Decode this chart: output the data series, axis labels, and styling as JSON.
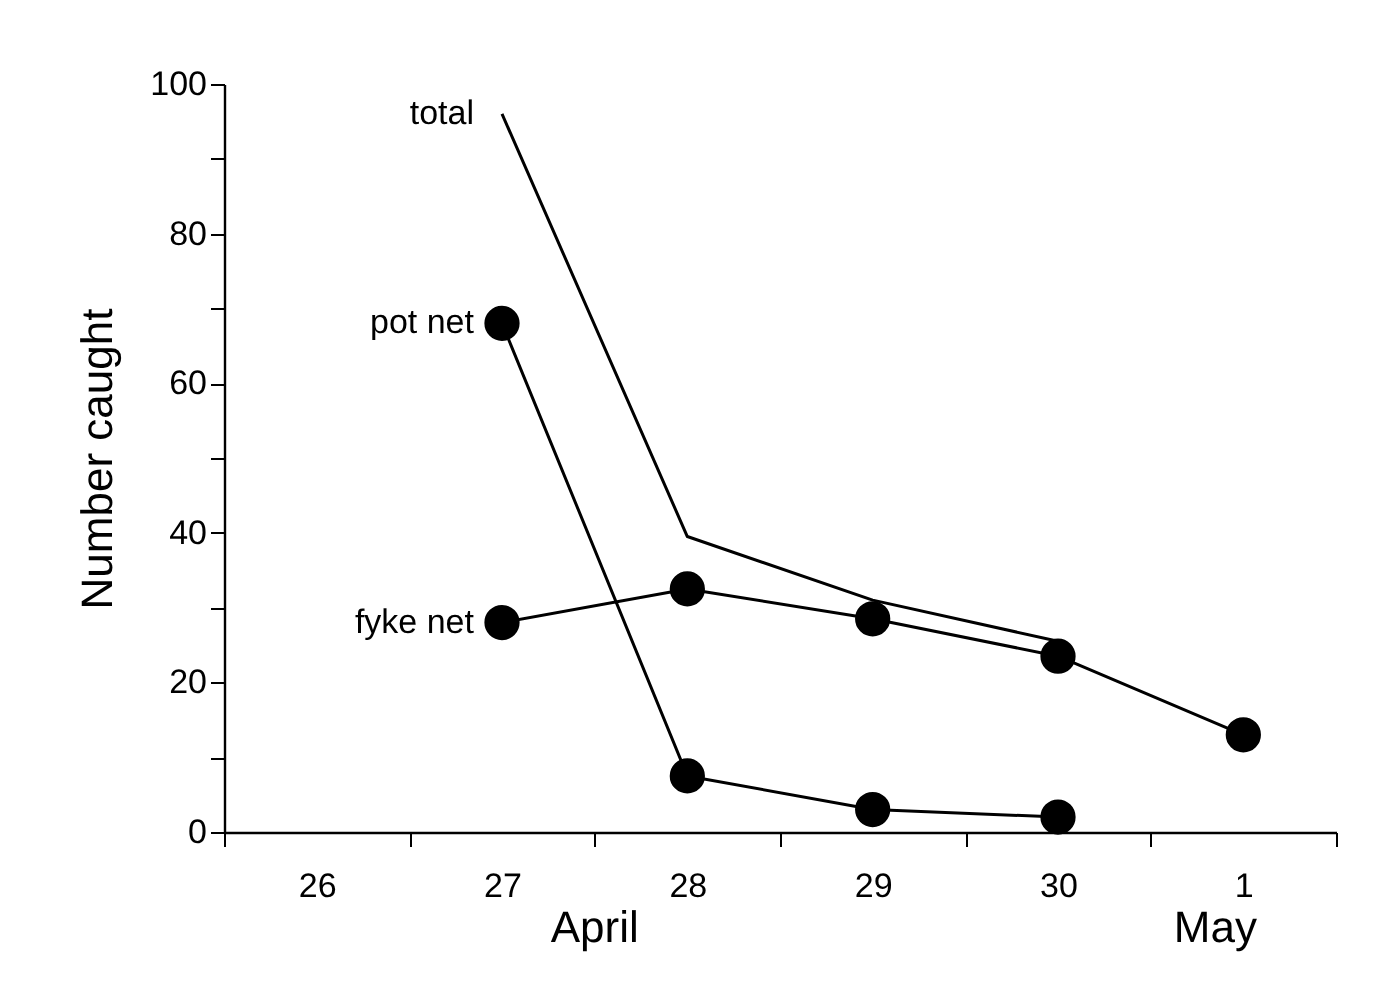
{
  "chart_data": {
    "type": "line",
    "ylabel": "Number caught",
    "categories": [
      "26",
      "27",
      "28",
      "29",
      "30",
      "1"
    ],
    "ylim": [
      0,
      100
    ],
    "yticks": [
      0,
      {
        "value": 10,
        "label": null
      },
      20,
      {
        "value": 30,
        "label": null
      },
      40,
      {
        "value": 50,
        "label": null
      },
      60,
      {
        "value": 70,
        "label": null
      },
      80,
      {
        "value": 90,
        "label": null
      },
      100
    ],
    "grid": false,
    "series": [
      {
        "name": "total",
        "color": "#000000",
        "marker": "none",
        "values": [
          null,
          96,
          39.5,
          31,
          25.5,
          null
        ]
      },
      {
        "name": "pot net",
        "color": "#000000",
        "marker": "circle",
        "values": [
          null,
          68,
          7.5,
          3,
          2,
          null
        ]
      },
      {
        "name": "fyke net",
        "color": "#000000",
        "marker": "circle",
        "values": [
          null,
          28,
          32.5,
          28.5,
          23.5,
          13
        ]
      }
    ],
    "annotations": [
      "April",
      "May"
    ]
  }
}
